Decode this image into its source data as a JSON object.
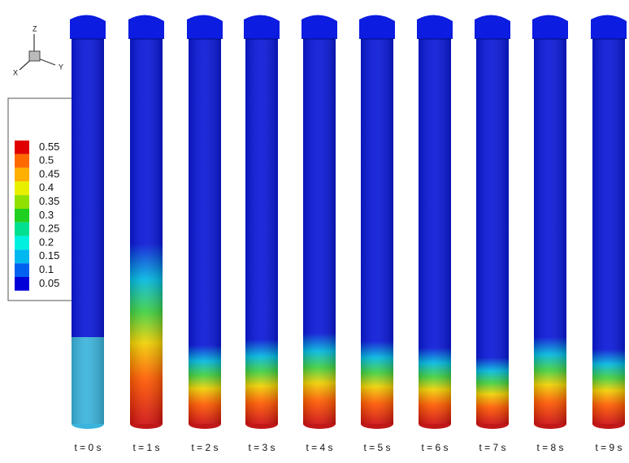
{
  "axes_triad": {
    "z": "Z",
    "x": "X",
    "y": "Y"
  },
  "legend": {
    "levels": [
      {
        "value": 0.55,
        "color": "#e00000"
      },
      {
        "value": 0.5,
        "color": "#ff6a00"
      },
      {
        "value": 0.45,
        "color": "#ffb000"
      },
      {
        "value": 0.4,
        "color": "#e8f000"
      },
      {
        "value": 0.35,
        "color": "#90e000"
      },
      {
        "value": 0.3,
        "color": "#20d020"
      },
      {
        "value": 0.25,
        "color": "#00e090"
      },
      {
        "value": 0.2,
        "color": "#00f0e0"
      },
      {
        "value": 0.15,
        "color": "#00b8f0"
      },
      {
        "value": 0.1,
        "color": "#0060f0"
      },
      {
        "value": 0.05,
        "color": "#0000d8"
      }
    ]
  },
  "frames": [
    "t = 0 s",
    "t = 1 s",
    "t = 2 s",
    "t = 3 s",
    "t = 4 s",
    "t = 5 s",
    "t = 6 s",
    "t = 7 s",
    "t = 8 s",
    "t = 9 s"
  ]
}
